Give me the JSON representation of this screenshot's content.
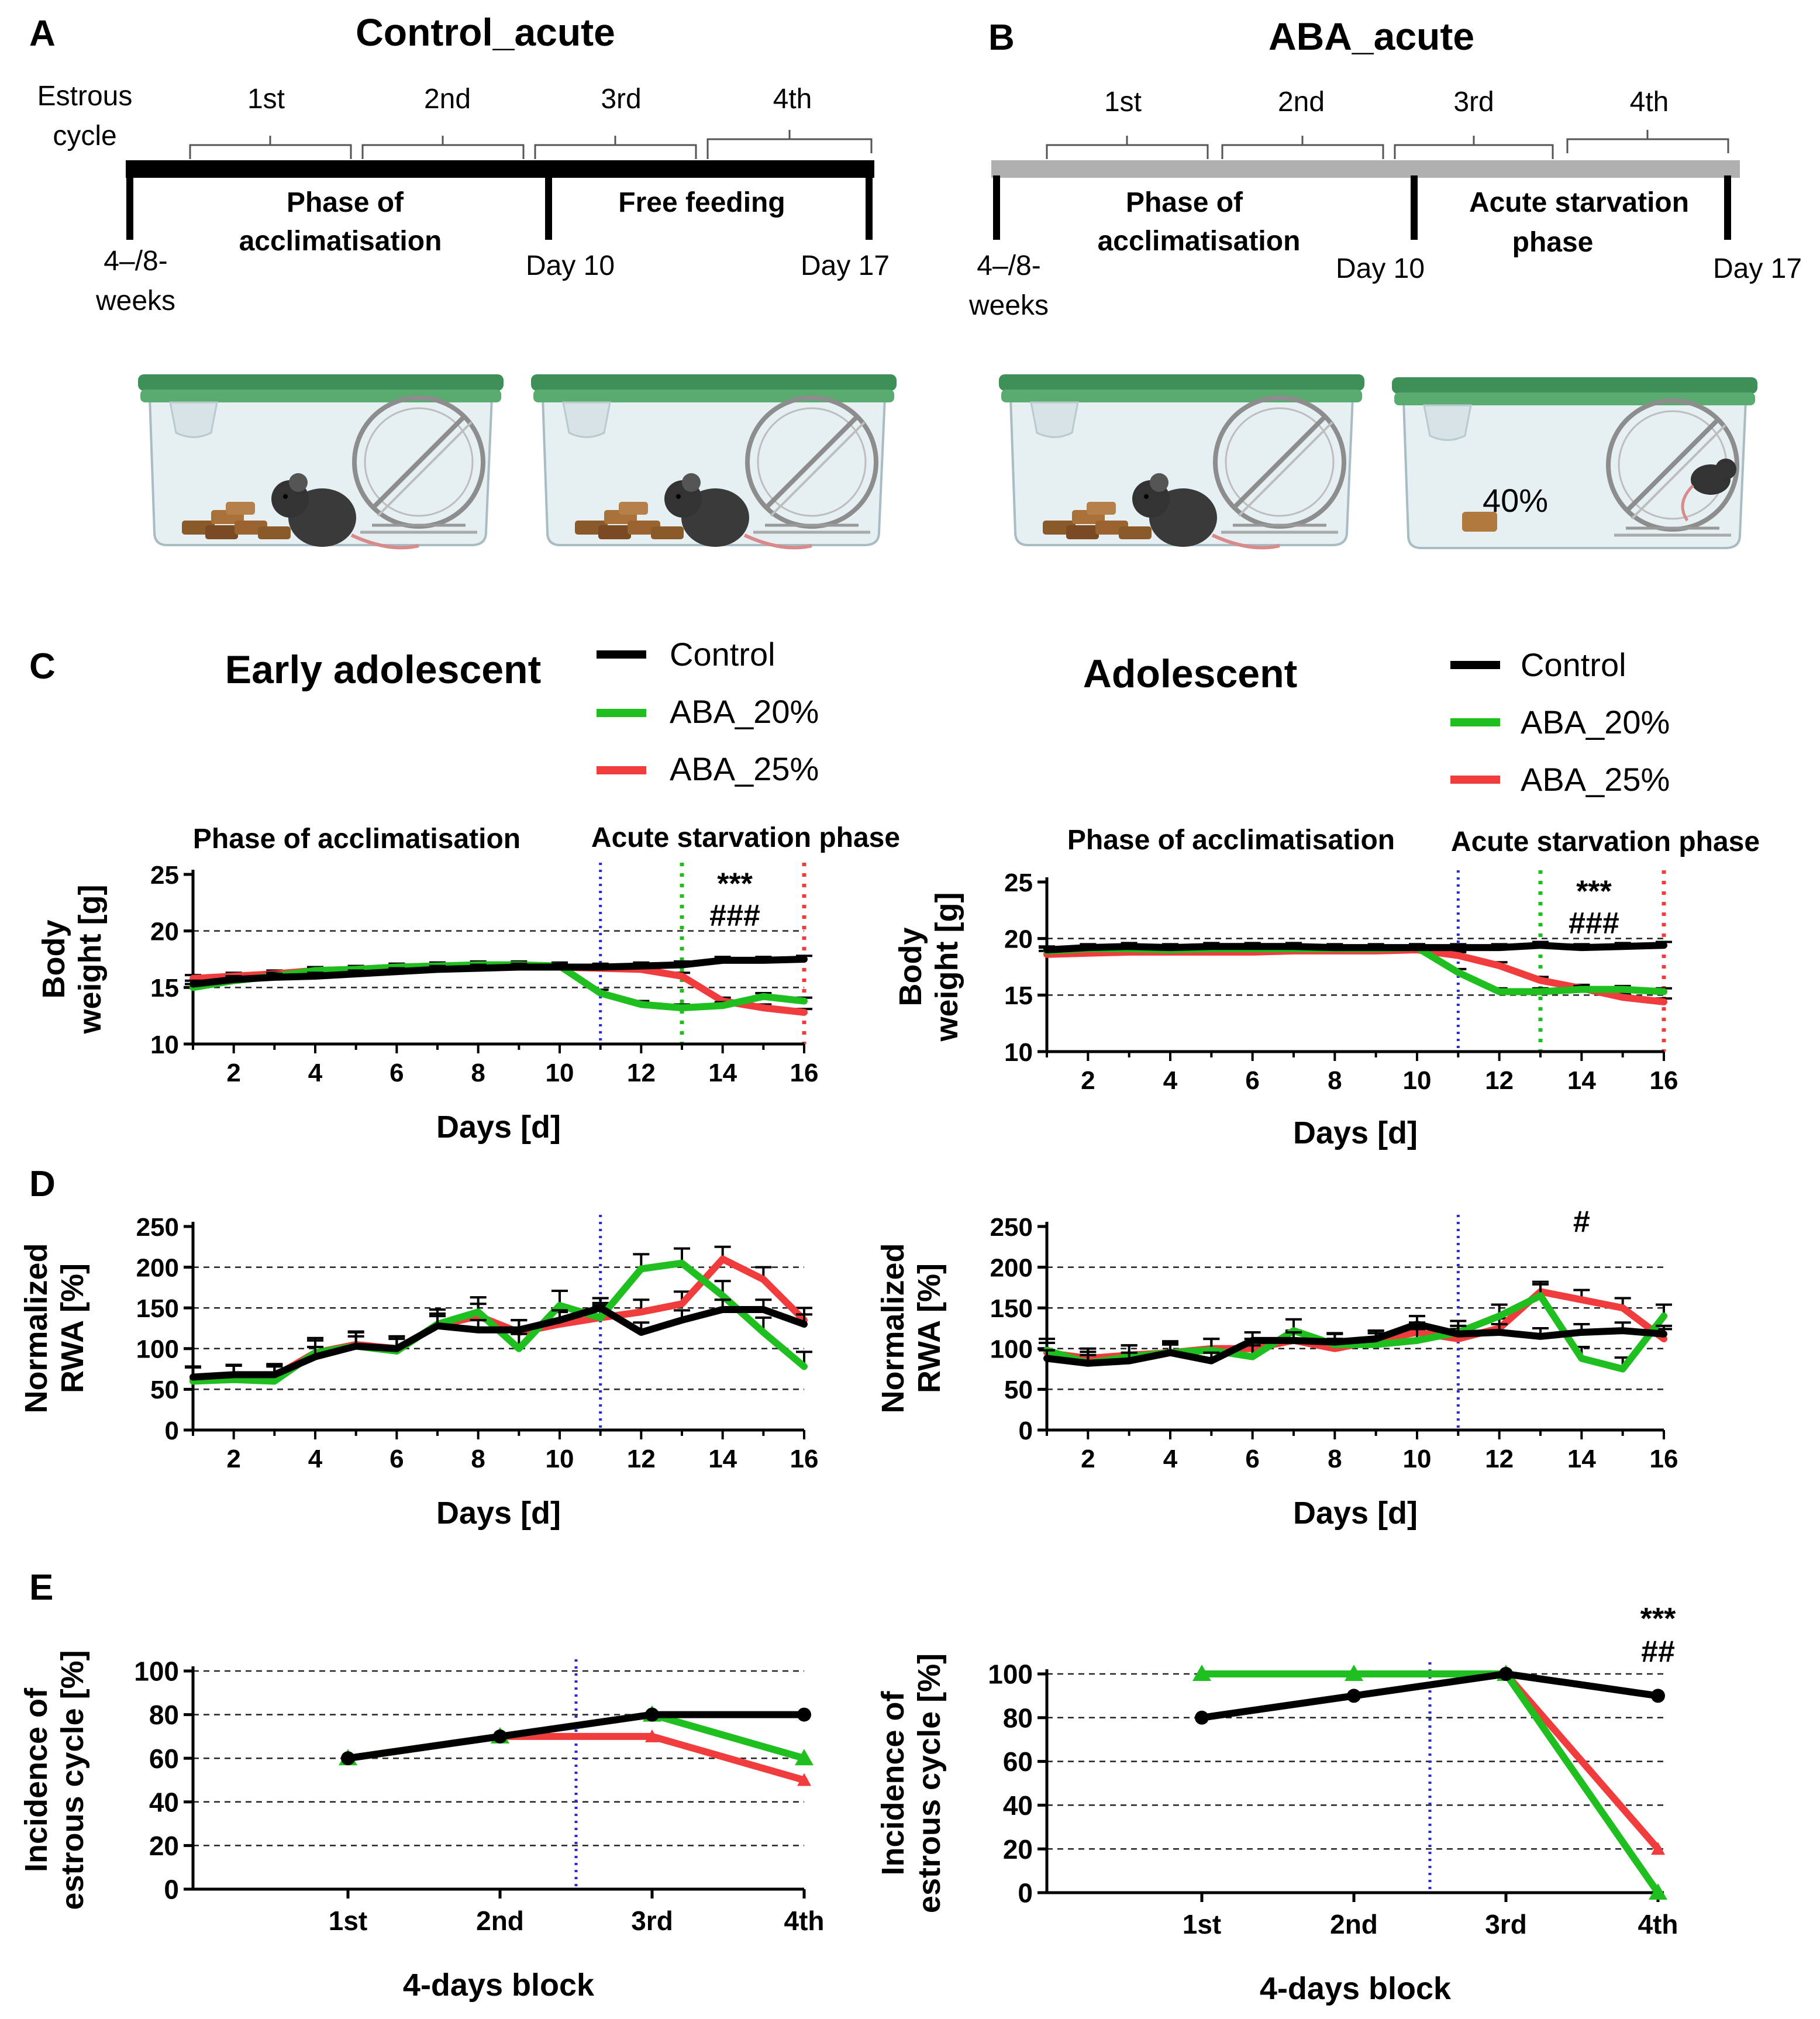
{
  "colors": {
    "control": "#000000",
    "aba20": "#1fbf1f",
    "aba25": "#f03c3c",
    "marker_blue": "#2a2ad8",
    "marker_green": "#1fbf1f",
    "marker_red": "#f03c3c",
    "cage_lid": "#4a9a62",
    "cage_body": "#e6f0f2",
    "timeline_a": "#000000",
    "timeline_b": "#b0b0b0"
  },
  "panel_a": {
    "letter": "A",
    "title": "Control_acute",
    "estrous_line1": "Estrous",
    "estrous_line2": "cycle",
    "cycles": [
      "1st",
      "2nd",
      "3rd",
      "4th"
    ],
    "phase1_line1": "Phase of",
    "phase1_line2": "acclimatisation",
    "phase2_line1": "Free feeding",
    "age_line1": "4–/8-",
    "age_line2": "weeks",
    "day_mid": "Day 10",
    "day_end": "Day 17"
  },
  "panel_b": {
    "letter": "B",
    "title": "ABA_acute",
    "cycles": [
      "1st",
      "2nd",
      "3rd",
      "4th"
    ],
    "phase1_line1": "Phase of",
    "phase1_line2": "acclimatisation",
    "phase2_line1": "Acute starvation",
    "phase2_line2": "phase",
    "age_line1": "4–/8-",
    "age_line2": "weeks",
    "day_mid": "Day 10",
    "day_end": "Day 17",
    "food_label": "40%"
  },
  "panel_c": {
    "letter": "C"
  },
  "panel_d": {
    "letter": "D"
  },
  "panel_e": {
    "letter": "E"
  },
  "groups": {
    "left_title": "Early adolescent",
    "right_title": "Adolescent",
    "legend": [
      "Control",
      "ABA_20%",
      "ABA_25%"
    ]
  },
  "phase_labels": {
    "acclimatisation": "Phase of acclimatisation",
    "starvation": "Acute starvation phase"
  },
  "chart_data": [
    {
      "id": "c_left",
      "type": "line",
      "title": "Early adolescent",
      "xlabel": "Days [d]",
      "ylabel": [
        "Body",
        "weight [g]"
      ],
      "xlim": [
        1,
        16
      ],
      "ylim": [
        10,
        25
      ],
      "xticks": [
        2,
        4,
        6,
        8,
        10,
        12,
        14,
        16
      ],
      "yticks": [
        10,
        15,
        20,
        25
      ],
      "grid": [
        15,
        20
      ],
      "x": [
        1,
        2,
        3,
        4,
        5,
        6,
        7,
        8,
        9,
        10,
        11,
        12,
        13,
        14,
        15,
        16
      ],
      "series": [
        {
          "name": "Control",
          "values": [
            15.3,
            15.7,
            15.9,
            16.0,
            16.2,
            16.4,
            16.6,
            16.7,
            16.8,
            16.8,
            16.8,
            16.9,
            17.0,
            17.4,
            17.4,
            17.5
          ]
        },
        {
          "name": "ABA_20%",
          "values": [
            15.0,
            15.6,
            16.0,
            16.5,
            16.6,
            16.8,
            16.9,
            17.0,
            17.0,
            16.9,
            14.5,
            13.5,
            13.2,
            13.4,
            14.2,
            13.8
          ]
        },
        {
          "name": "ABA_25%",
          "values": [
            15.8,
            16.0,
            16.2,
            16.5,
            16.6,
            16.8,
            16.9,
            16.9,
            16.9,
            16.8,
            16.7,
            16.6,
            16.0,
            13.8,
            13.2,
            12.8
          ]
        }
      ],
      "errors": {
        "Control": 0.3,
        "ABA_20%": 0.3,
        "ABA_25%": 0.3
      },
      "vlines": [
        {
          "x": 11,
          "color": "blue"
        },
        {
          "x": 13,
          "color": "green"
        },
        {
          "x": 16,
          "color": "red"
        }
      ],
      "annotations": [
        {
          "text": "***",
          "x": 14.3,
          "y": 24.3
        },
        {
          "text": "###",
          "x": 14.3,
          "y": 21.5
        }
      ]
    },
    {
      "id": "c_right",
      "type": "line",
      "title": "Adolescent",
      "xlabel": "Days [d]",
      "ylabel": [
        "Body",
        "weight [g]"
      ],
      "xlim": [
        1,
        16
      ],
      "ylim": [
        10,
        25
      ],
      "xticks": [
        2,
        4,
        6,
        8,
        10,
        12,
        14,
        16
      ],
      "yticks": [
        10,
        15,
        20,
        25
      ],
      "grid": [
        15,
        20
      ],
      "x": [
        1,
        2,
        3,
        4,
        5,
        6,
        7,
        8,
        9,
        10,
        11,
        12,
        13,
        14,
        15,
        16
      ],
      "series": [
        {
          "name": "Control",
          "values": [
            19.0,
            19.2,
            19.3,
            19.2,
            19.3,
            19.3,
            19.3,
            19.2,
            19.2,
            19.2,
            19.2,
            19.2,
            19.4,
            19.2,
            19.3,
            19.4
          ]
        },
        {
          "name": "ABA_20%",
          "values": [
            18.9,
            19.1,
            19.1,
            19.0,
            19.1,
            19.1,
            19.1,
            19.1,
            19.1,
            19.2,
            17.0,
            15.3,
            15.3,
            15.5,
            15.5,
            15.3
          ]
        },
        {
          "name": "ABA_25%",
          "values": [
            18.6,
            18.7,
            18.8,
            18.8,
            18.8,
            18.8,
            18.9,
            18.9,
            18.9,
            19.0,
            18.5,
            17.6,
            16.3,
            15.6,
            14.8,
            14.4
          ]
        }
      ],
      "errors": {
        "Control": 0.3,
        "ABA_20%": 0.3,
        "ABA_25%": 0.3
      },
      "vlines": [
        {
          "x": 11,
          "color": "blue"
        },
        {
          "x": 13,
          "color": "green"
        },
        {
          "x": 16,
          "color": "red"
        }
      ],
      "annotations": [
        {
          "text": "***",
          "x": 14.3,
          "y": 24.3
        },
        {
          "text": "###",
          "x": 14.3,
          "y": 21.5
        }
      ]
    },
    {
      "id": "d_left",
      "type": "line",
      "xlabel": "Days [d]",
      "ylabel": [
        "Normalized",
        "RWA [%]"
      ],
      "xlim": [
        1,
        16
      ],
      "ylim": [
        0,
        250
      ],
      "xticks": [
        2,
        4,
        6,
        8,
        10,
        12,
        14,
        16
      ],
      "yticks": [
        0,
        50,
        100,
        150,
        200,
        250
      ],
      "grid": [
        50,
        100,
        150,
        200
      ],
      "x": [
        1,
        2,
        3,
        4,
        5,
        6,
        7,
        8,
        9,
        10,
        11,
        12,
        13,
        14,
        15,
        16
      ],
      "series": [
        {
          "name": "Control",
          "values": [
            65,
            68,
            68,
            90,
            103,
            100,
            128,
            123,
            123,
            135,
            150,
            120,
            135,
            148,
            148,
            130
          ]
        },
        {
          "name": "ABA_20%",
          "values": [
            60,
            62,
            60,
            95,
            103,
            97,
            130,
            145,
            100,
            153,
            138,
            198,
            205,
            165,
            120,
            78
          ]
        },
        {
          "name": "ABA_25%",
          "values": [
            62,
            64,
            66,
            95,
            105,
            100,
            128,
            140,
            120,
            130,
            138,
            145,
            155,
            210,
            185,
            135
          ]
        }
      ],
      "errors": {
        "Control": 12,
        "ABA_20%": 18,
        "ABA_25%": 15
      },
      "vlines": [
        {
          "x": 11,
          "color": "blue"
        }
      ],
      "annotations": []
    },
    {
      "id": "d_right",
      "type": "line",
      "xlabel": "Days [d]",
      "ylabel": [
        "Normalized",
        "RWA [%]"
      ],
      "xlim": [
        1,
        16
      ],
      "ylim": [
        0,
        250
      ],
      "xticks": [
        2,
        4,
        6,
        8,
        10,
        12,
        14,
        16
      ],
      "yticks": [
        0,
        50,
        100,
        150,
        200,
        250
      ],
      "grid": [
        50,
        100,
        150,
        200
      ],
      "x": [
        1,
        2,
        3,
        4,
        5,
        6,
        7,
        8,
        9,
        10,
        11,
        12,
        13,
        14,
        15,
        16
      ],
      "series": [
        {
          "name": "Control",
          "values": [
            88,
            82,
            85,
            95,
            85,
            110,
            110,
            108,
            112,
            130,
            118,
            120,
            115,
            120,
            122,
            118
          ]
        },
        {
          "name": "ABA_20%",
          "values": [
            98,
            82,
            90,
            95,
            98,
            90,
            122,
            105,
            105,
            110,
            120,
            140,
            165,
            88,
            75,
            140
          ]
        },
        {
          "name": "ABA_25%",
          "values": [
            95,
            88,
            92,
            95,
            100,
            100,
            110,
            100,
            110,
            120,
            112,
            125,
            170,
            160,
            150,
            112
          ]
        }
      ],
      "errors": {
        "Control": 10,
        "ABA_20%": 14,
        "ABA_25%": 12
      },
      "vlines": [
        {
          "x": 11,
          "color": "blue"
        }
      ],
      "annotations": [
        {
          "text": "#",
          "x": 14,
          "y": 258
        }
      ]
    },
    {
      "id": "e_left",
      "type": "line",
      "xlabel": "4-days block",
      "ylabel": [
        "Incidence of",
        "estrous cycle [%]"
      ],
      "categories": [
        "1st",
        "2nd",
        "3rd",
        "4th"
      ],
      "ylim": [
        0,
        100
      ],
      "yticks": [
        0,
        20,
        40,
        60,
        80,
        100
      ],
      "grid": [
        20,
        40,
        60,
        80,
        100
      ],
      "series": [
        {
          "name": "Control",
          "values": [
            60,
            70,
            80,
            80
          ]
        },
        {
          "name": "ABA_20%",
          "values": [
            60,
            70,
            80,
            60
          ]
        },
        {
          "name": "ABA_25%",
          "values": [
            60,
            70,
            70,
            50
          ]
        }
      ],
      "vline_between": [
        2,
        3
      ],
      "annotations": []
    },
    {
      "id": "e_right",
      "type": "line",
      "xlabel": "4-days block",
      "ylabel": [
        "Incidence of",
        "estrous cycle [%]"
      ],
      "categories": [
        "1st",
        "2nd",
        "3rd",
        "4th"
      ],
      "ylim": [
        0,
        100
      ],
      "yticks": [
        0,
        20,
        40,
        60,
        80,
        100
      ],
      "grid": [
        20,
        40,
        60,
        80,
        100
      ],
      "series": [
        {
          "name": "Control",
          "values": [
            80,
            90,
            100,
            90
          ]
        },
        {
          "name": "ABA_20%",
          "values": [
            100,
            100,
            100,
            0
          ]
        },
        {
          "name": "ABA_25%",
          "values": [
            100,
            100,
            100,
            20
          ]
        }
      ],
      "vline_between": [
        2,
        3
      ],
      "annotations": [
        {
          "text": "***",
          "x": 4,
          "y": 126
        },
        {
          "text": "##",
          "x": 4,
          "y": 111
        }
      ]
    }
  ]
}
